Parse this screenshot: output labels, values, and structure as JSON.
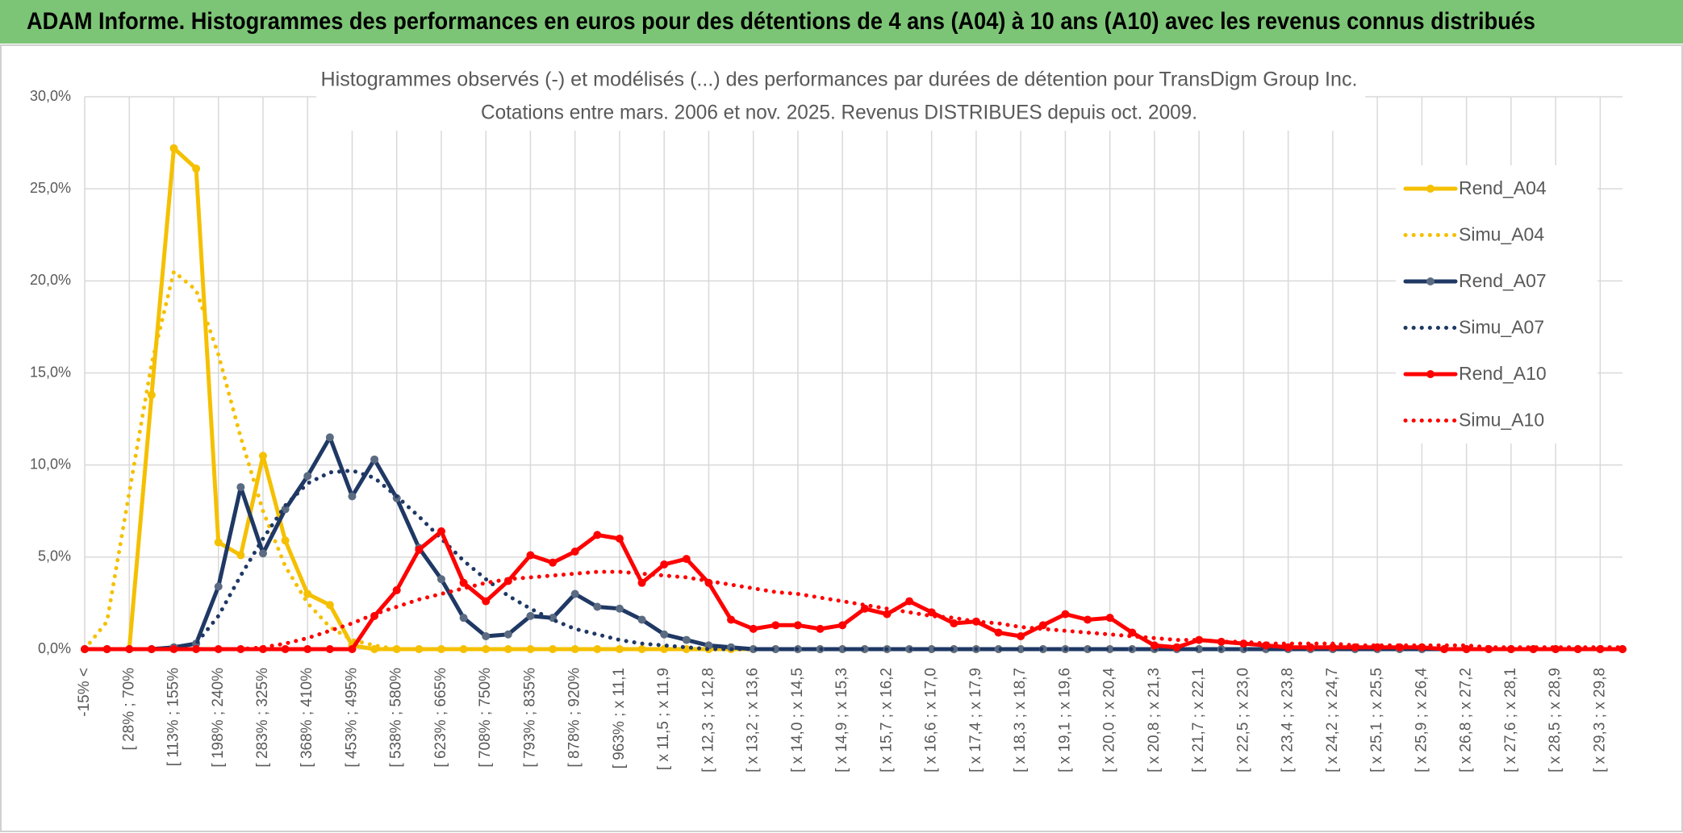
{
  "header": {
    "title": "ADAM Informe. Histogrammes des performances en euros pour des détentions de 4 ans (A04) à 10 ans (A10) avec les revenus connus distribués"
  },
  "chart_data": {
    "type": "line",
    "title": "Histogrammes observés (-) et modélisés (...) des performances par durées de détention pour TransDigm Group Inc.",
    "subtitle": "Cotations entre mars. 2006 et nov. 2025. Revenus DISTRIBUES depuis oct. 2009.",
    "categories": [
      "-15% <",
      null,
      "[ 28% ; 70%",
      null,
      "[ 113% ; 155%",
      null,
      "[ 198% ; 240%",
      null,
      "[ 283% ; 325%",
      null,
      "[ 368% ; 410%",
      null,
      "[ 453% ; 495%",
      null,
      "[ 538% ; 580%",
      null,
      "[ 623% ; 665%",
      null,
      "[ 708% ; 750%",
      null,
      "[ 793% ; 835%",
      null,
      "[ 878% ; 920%",
      null,
      "[ 963% ; x 11,1",
      null,
      "[ x 11,5 ; x 11,9",
      null,
      "[ x 12,3 ; x 12,8",
      null,
      "[ x 13,2 ; x 13,6",
      null,
      "[ x 14,0 ; x 14,5",
      null,
      "[ x 14,9 ; x 15,3",
      null,
      "[ x 15,7 ; x 16,2",
      null,
      "[ x 16,6 ; x 17,0",
      null,
      "[ x 17,4 ; x 17,9",
      null,
      "[ x 18,3 ; x 18,7",
      null,
      "[ x 19,1 ; x 19,6",
      null,
      "[ x 20,0 ; x 20,4",
      null,
      "[ x 20,8 ; x 21,3",
      null,
      "[ x 21,7 ; x 22,1",
      null,
      "[ x 22,5 ; x 23,0",
      null,
      "[ x 23,4 ; x 23,8",
      null,
      "[ x 24,2 ; x 24,7",
      null,
      "[ x 25,1 ; x 25,5",
      null,
      "[ x 25,9 ; x 26,4",
      null,
      "[ x 26,8 ; x 27,2",
      null,
      "[ x 27,6 ; x 28,1",
      null,
      "[ x 28,5 ; x 28,9",
      null,
      "[ x 29,3 ; x 29,8",
      null
    ],
    "series": [
      {
        "name": "Rend_A04",
        "color": "#f5c000",
        "marker_color": "#f5c000",
        "style": "solid",
        "values": [
          0,
          0,
          0,
          13.8,
          27.2,
          26.1,
          5.8,
          5.1,
          10.5,
          5.9,
          3.0,
          2.4,
          0.2,
          0,
          0,
          0,
          0,
          0,
          0,
          0,
          0,
          0,
          0,
          0,
          0,
          0,
          0,
          0,
          0,
          0,
          0,
          0,
          0,
          0,
          0,
          0,
          0,
          0,
          0,
          0,
          0,
          0,
          0,
          0,
          0,
          0,
          0,
          0,
          0,
          0,
          0,
          0,
          0,
          0,
          0,
          0,
          0,
          0,
          0,
          0,
          0,
          0,
          0,
          0,
          0,
          0,
          0,
          0,
          0,
          0
        ]
      },
      {
        "name": "Simu_A04",
        "color": "#f5c000",
        "style": "dotted",
        "values": [
          0,
          1.5,
          8.5,
          15.5,
          20.5,
          19.5,
          16.0,
          11.5,
          7.5,
          4.5,
          2.5,
          1.2,
          0.5,
          0.2,
          0,
          0,
          0,
          0,
          0,
          0,
          0,
          0,
          0,
          0,
          0,
          0,
          0,
          0,
          0,
          0,
          0,
          0,
          0,
          0,
          0,
          0,
          0,
          0,
          0,
          0,
          0,
          0,
          0,
          0,
          0,
          0,
          0,
          0,
          0,
          0,
          0,
          0,
          0,
          0,
          0,
          0,
          0,
          0,
          0,
          0,
          0,
          0,
          0,
          0,
          0,
          0,
          0,
          0,
          0,
          0
        ]
      },
      {
        "name": "Rend_A07",
        "color": "#1f3864",
        "marker_color": "#5b6b82",
        "style": "solid",
        "values": [
          0,
          0,
          0,
          0,
          0.1,
          0.3,
          3.4,
          8.8,
          5.2,
          7.6,
          9.4,
          11.5,
          8.3,
          10.3,
          8.2,
          5.5,
          3.8,
          1.7,
          0.7,
          0.8,
          1.8,
          1.7,
          3.0,
          2.3,
          2.2,
          1.6,
          0.8,
          0.5,
          0.2,
          0.1,
          0,
          0,
          0,
          0,
          0,
          0,
          0,
          0,
          0,
          0,
          0,
          0,
          0,
          0,
          0,
          0,
          0,
          0,
          0,
          0,
          0,
          0,
          0,
          0,
          0,
          0,
          0,
          0,
          0,
          0,
          0,
          0,
          0,
          0,
          0,
          0,
          0,
          0,
          0,
          0
        ]
      },
      {
        "name": "Simu_A07",
        "color": "#1f3864",
        "style": "dotted",
        "values": [
          0,
          0,
          0,
          0,
          0.1,
          0.3,
          1.8,
          4.0,
          6.0,
          7.8,
          9.0,
          9.6,
          9.7,
          9.3,
          8.3,
          7.2,
          6.0,
          4.8,
          3.8,
          2.9,
          2.2,
          1.6,
          1.1,
          0.8,
          0.5,
          0.3,
          0.2,
          0.1,
          0,
          0,
          0,
          0,
          0,
          0,
          0,
          0,
          0,
          0,
          0,
          0,
          0,
          0,
          0,
          0,
          0,
          0,
          0,
          0,
          0,
          0,
          0,
          0,
          0,
          0,
          0,
          0,
          0,
          0,
          0,
          0,
          0,
          0,
          0,
          0,
          0,
          0,
          0,
          0,
          0,
          0
        ]
      },
      {
        "name": "Rend_A10",
        "color": "#ff0000",
        "marker_color": "#ff0000",
        "style": "solid",
        "values": [
          0,
          0,
          0,
          0,
          0,
          0,
          0,
          0,
          0,
          0,
          0,
          0,
          0,
          1.8,
          3.2,
          5.4,
          6.4,
          3.6,
          2.6,
          3.7,
          5.1,
          4.7,
          5.3,
          6.2,
          6.0,
          3.6,
          4.6,
          4.9,
          3.6,
          1.6,
          1.1,
          1.3,
          1.3,
          1.1,
          1.3,
          2.2,
          1.9,
          2.6,
          2.0,
          1.4,
          1.5,
          0.9,
          0.7,
          1.3,
          1.9,
          1.6,
          1.7,
          0.9,
          0.2,
          0.1,
          0.5,
          0.4,
          0.3,
          0.2,
          0.1,
          0.1,
          0.1,
          0.1,
          0.1,
          0.1,
          0.1,
          0,
          0,
          0,
          0,
          0,
          0,
          0,
          0,
          0
        ]
      },
      {
        "name": "Simu_A10",
        "color": "#ff0000",
        "style": "dotted",
        "values": [
          0,
          0,
          0,
          0,
          0,
          0,
          0,
          0,
          0.1,
          0.3,
          0.6,
          1.0,
          1.4,
          1.9,
          2.3,
          2.7,
          3.0,
          3.3,
          3.6,
          3.8,
          3.9,
          4.0,
          4.1,
          4.2,
          4.2,
          4.1,
          4.0,
          3.9,
          3.7,
          3.5,
          3.3,
          3.1,
          3.0,
          2.8,
          2.6,
          2.4,
          2.2,
          2.0,
          1.8,
          1.7,
          1.5,
          1.4,
          1.2,
          1.1,
          1.0,
          0.9,
          0.8,
          0.7,
          0.6,
          0.5,
          0.5,
          0.4,
          0.4,
          0.3,
          0.3,
          0.3,
          0.3,
          0.2,
          0.2,
          0.2,
          0.2,
          0.2,
          0.2,
          0.1,
          0.1,
          0.1,
          0.1,
          0.1,
          0.1,
          0.1
        ]
      }
    ],
    "ylim": [
      0,
      30
    ],
    "yticks": [
      {
        "value": 0,
        "label": "0,0%"
      },
      {
        "value": 5,
        "label": "5,0%"
      },
      {
        "value": 10,
        "label": "10,0%"
      },
      {
        "value": 15,
        "label": "15,0%"
      },
      {
        "value": 20,
        "label": "20,0%"
      },
      {
        "value": 25,
        "label": "25,0%"
      },
      {
        "value": 30,
        "label": "30,0%"
      }
    ],
    "grid": true,
    "legend": "right"
  }
}
